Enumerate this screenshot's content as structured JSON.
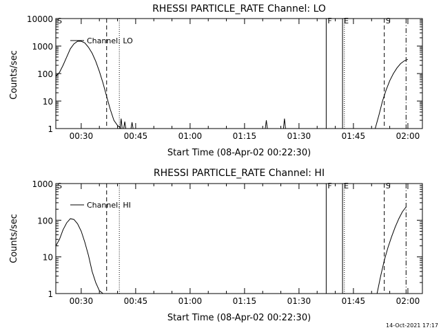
{
  "footer_timestamp": "14-Oct-2021 17:17",
  "colors": {
    "background": "#ffffff",
    "foreground": "#000000"
  },
  "chart_data": [
    {
      "type": "line",
      "title": "RHESSI PARTICLE_RATE Channel: LO",
      "xlabel": "Start Time (08-Apr-02 00:22:30)",
      "ylabel": "Counts/sec",
      "y_scale": "log",
      "ylim": [
        1,
        10000
      ],
      "xlim": [
        "00:23:00",
        "02:04:00"
      ],
      "x_ticks": [
        "00:30",
        "00:45",
        "01:00",
        "01:15",
        "01:30",
        "01:45",
        "02:00"
      ],
      "y_ticks": [
        "1",
        "10",
        "100",
        "1000",
        "10000"
      ],
      "legend": {
        "position": "top-left",
        "entries": [
          "Channel: LO"
        ]
      },
      "series": [
        {
          "name": "Channel: LO",
          "points": [
            [
              "00:23:00",
              80
            ],
            [
              "00:24:00",
              110
            ],
            [
              "00:25:00",
              200
            ],
            [
              "00:26:00",
              400
            ],
            [
              "00:27:00",
              800
            ],
            [
              "00:28:00",
              1200
            ],
            [
              "00:29:00",
              1500
            ],
            [
              "00:30:00",
              1500
            ],
            [
              "00:31:00",
              1300
            ],
            [
              "00:32:00",
              900
            ],
            [
              "00:33:00",
              550
            ],
            [
              "00:34:00",
              280
            ],
            [
              "00:35:00",
              120
            ],
            [
              "00:36:00",
              45
            ],
            [
              "00:37:00",
              15
            ],
            [
              "00:38:00",
              5
            ],
            [
              "00:39:00",
              2
            ],
            [
              "00:40:00",
              1.3
            ],
            [
              "00:41:00",
              1
            ]
          ],
          "spikes": [
            [
              "00:41:00",
              2.3
            ],
            [
              "00:42:00",
              1.8
            ],
            [
              "00:44:00",
              1.7
            ],
            [
              "01:21:00",
              2.0
            ],
            [
              "01:26:00",
              2.3
            ]
          ],
          "segments_end": [
            [
              "01:51:00",
              1
            ],
            [
              "01:52:00",
              3
            ],
            [
              "01:53:00",
              10
            ],
            [
              "01:54:00",
              25
            ],
            [
              "01:55:00",
              55
            ],
            [
              "01:56:00",
              100
            ],
            [
              "01:57:00",
              160
            ],
            [
              "01:58:00",
              230
            ],
            [
              "01:59:00",
              290
            ],
            [
              "02:00:00",
              330
            ]
          ]
        }
      ],
      "markers": [
        {
          "label": "S",
          "time": "00:23:00",
          "style": "solid"
        },
        {
          "label": "",
          "time": "00:37:00",
          "style": "dashed"
        },
        {
          "label": "",
          "time": "00:40:30",
          "style": "dotted"
        },
        {
          "label": "F",
          "time": "01:37:30",
          "style": "solid"
        },
        {
          "label": "E",
          "time": "01:42:00",
          "style": "solid"
        },
        {
          "label": "",
          "time": "01:42:30",
          "style": "dotted"
        },
        {
          "label": "S",
          "time": "01:53:30",
          "style": "dashed"
        },
        {
          "label": "",
          "time": "01:59:30",
          "style": "dashdot"
        }
      ]
    },
    {
      "type": "line",
      "title": "RHESSI PARTICLE_RATE Channel: HI",
      "xlabel": "Start Time (08-Apr-02 00:22:30)",
      "ylabel": "Counts/sec",
      "y_scale": "log",
      "ylim": [
        1,
        1000
      ],
      "xlim": [
        "00:23:00",
        "02:04:00"
      ],
      "x_ticks": [
        "00:30",
        "00:45",
        "01:00",
        "01:15",
        "01:30",
        "01:45",
        "02:00"
      ],
      "y_ticks": [
        "1",
        "10",
        "100",
        "1000"
      ],
      "legend": {
        "position": "top-left",
        "entries": [
          "Channel: HI"
        ]
      },
      "series": [
        {
          "name": "Channel: HI",
          "points": [
            [
              "00:23:00",
              20
            ],
            [
              "00:24:00",
              30
            ],
            [
              "00:25:00",
              55
            ],
            [
              "00:26:00",
              85
            ],
            [
              "00:27:00",
              110
            ],
            [
              "00:28:00",
              105
            ],
            [
              "00:29:00",
              80
            ],
            [
              "00:30:00",
              50
            ],
            [
              "00:31:00",
              25
            ],
            [
              "00:32:00",
              11
            ],
            [
              "00:33:00",
              4
            ],
            [
              "00:34:00",
              2
            ],
            [
              "00:35:00",
              1.2
            ],
            [
              "00:36:00",
              1
            ]
          ],
          "spikes": [],
          "segments_end": [
            [
              "01:51:30",
              1
            ],
            [
              "01:52:30",
              3
            ],
            [
              "01:53:30",
              8
            ],
            [
              "01:54:30",
              18
            ],
            [
              "01:55:30",
              35
            ],
            [
              "01:56:30",
              65
            ],
            [
              "01:57:30",
              110
            ],
            [
              "01:58:30",
              170
            ],
            [
              "01:59:30",
              230
            ]
          ]
        }
      ],
      "markers": [
        {
          "label": "S",
          "time": "00:23:00",
          "style": "solid"
        },
        {
          "label": "",
          "time": "00:37:00",
          "style": "dashed"
        },
        {
          "label": "",
          "time": "00:40:30",
          "style": "dotted"
        },
        {
          "label": "F",
          "time": "01:37:30",
          "style": "solid"
        },
        {
          "label": "E",
          "time": "01:42:00",
          "style": "solid"
        },
        {
          "label": "",
          "time": "01:42:30",
          "style": "dotted"
        },
        {
          "label": "S",
          "time": "01:53:30",
          "style": "dashed"
        },
        {
          "label": "",
          "time": "01:59:30",
          "style": "dashdot"
        }
      ]
    }
  ]
}
